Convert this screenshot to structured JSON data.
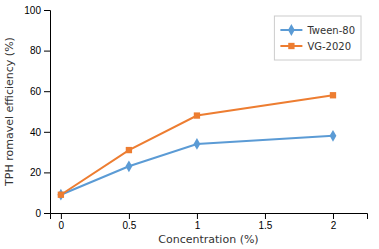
{
  "chart_data": {
    "type": "line",
    "x": [
      0,
      0.5,
      1,
      2
    ],
    "series": [
      {
        "name": "Tween-80",
        "color": "#5b9bd5",
        "values": [
          9,
          23,
          34,
          38
        ],
        "marker": "diamond"
      },
      {
        "name": "VG-2020",
        "color": "#ed7d31",
        "values": [
          9,
          31,
          48,
          58
        ],
        "marker": "square"
      }
    ],
    "xlabel": "Concentration (%)",
    "ylabel": "TPH romavel efficiency (%)",
    "xlim": [
      -0.08,
      2.25
    ],
    "ylim": [
      0,
      100
    ],
    "xticks": [
      0,
      0.5,
      1,
      1.5,
      2
    ],
    "yticks": [
      0,
      20,
      40,
      60,
      80,
      100
    ],
    "legend": "upper right",
    "grid": false
  }
}
